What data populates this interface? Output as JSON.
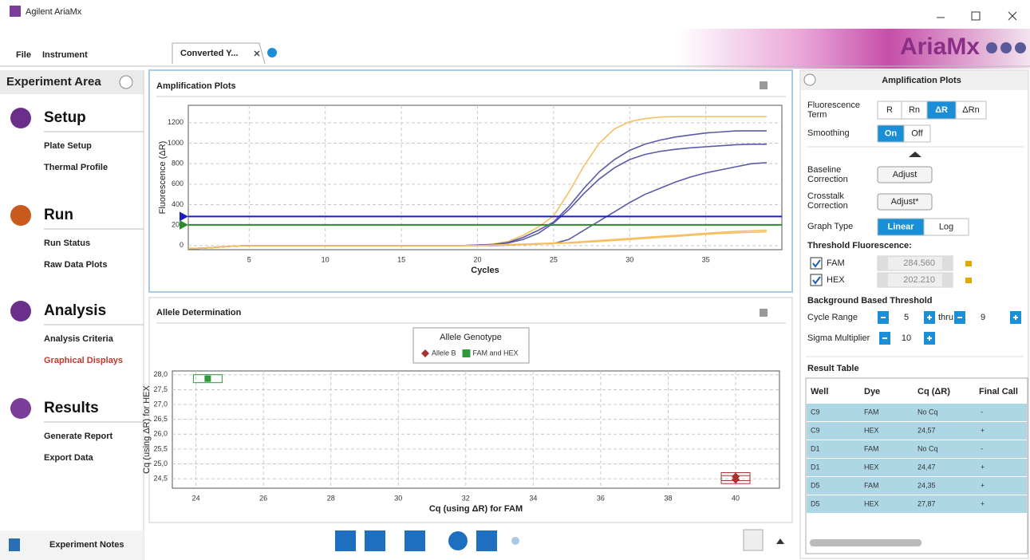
{
  "window": {
    "title": "Agilent AriaMx"
  },
  "menu": [
    "File",
    "Instrument"
  ],
  "tab": {
    "label": "Converted Y..."
  },
  "brand": "AriaMx",
  "sidebar": {
    "title": "Experiment Area",
    "sections": [
      {
        "title": "Setup",
        "items": [
          "Plate Setup",
          "Thermal Profile"
        ]
      },
      {
        "title": "Run",
        "items": [
          "Run Status",
          "Raw Data Plots"
        ]
      },
      {
        "title": "Analysis",
        "items": [
          "Analysis Criteria",
          "Graphical Displays"
        ]
      },
      {
        "title": "Results",
        "items": [
          "Generate Report",
          "Export Data"
        ]
      }
    ],
    "selected": [
      2,
      1
    ],
    "footer": "Experiment Notes"
  },
  "chart_data": [
    {
      "type": "line",
      "title": "Amplification Plots",
      "x_label": "Cycles",
      "y_label": "Fluorescence (ΔR)",
      "x": [
        1,
        2,
        3,
        4,
        5,
        6,
        7,
        8,
        9,
        10,
        11,
        12,
        13,
        14,
        15,
        16,
        17,
        18,
        19,
        20,
        21,
        22,
        23,
        24,
        25,
        26,
        27,
        28,
        29,
        30,
        31,
        32,
        33,
        34,
        35,
        36,
        37,
        38,
        39
      ],
      "xlim": [
        1,
        40
      ],
      "ylim": [
        -40,
        1370
      ],
      "xticks": [
        5,
        10,
        15,
        20,
        25,
        30,
        35
      ],
      "yticks": [
        0,
        200,
        400,
        600,
        800,
        1000,
        1200
      ],
      "grid": true,
      "series": [
        {
          "color": "#f5c060",
          "values": [
            -30,
            -25,
            -15,
            -5,
            0,
            0,
            0,
            0,
            0,
            0,
            0,
            0,
            0,
            0,
            0,
            0,
            0,
            0,
            0,
            5,
            15,
            40,
            100,
            180,
            290,
            520,
            780,
            1000,
            1140,
            1210,
            1240,
            1255,
            1260,
            1260,
            1260,
            1260,
            1260,
            1260,
            1260
          ]
        },
        {
          "color": "#5a5aa8",
          "values": [
            -30,
            -25,
            -15,
            -5,
            0,
            0,
            0,
            0,
            0,
            0,
            0,
            0,
            0,
            0,
            0,
            0,
            0,
            0,
            0,
            5,
            10,
            30,
            80,
            150,
            230,
            380,
            560,
            720,
            840,
            930,
            990,
            1030,
            1060,
            1080,
            1100,
            1110,
            1120,
            1120,
            1120
          ]
        },
        {
          "color": "#5a5aa8",
          "values": [
            -30,
            -25,
            -15,
            -5,
            0,
            0,
            0,
            0,
            0,
            0,
            0,
            0,
            0,
            0,
            0,
            0,
            0,
            0,
            0,
            5,
            10,
            25,
            60,
            120,
            220,
            350,
            510,
            650,
            760,
            840,
            890,
            920,
            940,
            955,
            965,
            975,
            985,
            990,
            990
          ]
        },
        {
          "color": "#5a5aa8",
          "values": [
            -30,
            -25,
            -15,
            -5,
            0,
            0,
            0,
            0,
            0,
            0,
            0,
            0,
            0,
            0,
            0,
            0,
            0,
            0,
            0,
            0,
            0,
            5,
            10,
            15,
            20,
            60,
            150,
            240,
            330,
            420,
            500,
            560,
            620,
            670,
            710,
            740,
            770,
            800,
            810
          ]
        },
        {
          "color": "#f5c060",
          "values": [
            -30,
            -25,
            -15,
            -5,
            0,
            0,
            0,
            0,
            0,
            0,
            0,
            0,
            0,
            0,
            0,
            0,
            0,
            0,
            0,
            0,
            5,
            10,
            15,
            20,
            25,
            30,
            40,
            50,
            60,
            70,
            80,
            90,
            100,
            110,
            120,
            130,
            140,
            145,
            150
          ]
        },
        {
          "color": "#f5c060",
          "values": [
            -30,
            -25,
            -15,
            -5,
            0,
            0,
            0,
            0,
            0,
            0,
            0,
            0,
            0,
            0,
            0,
            0,
            0,
            0,
            0,
            0,
            3,
            6,
            10,
            15,
            20,
            25,
            32,
            40,
            50,
            60,
            70,
            80,
            90,
            100,
            110,
            118,
            125,
            130,
            135
          ]
        }
      ],
      "thresholds": [
        {
          "dye": "FAM",
          "value": 284.56,
          "label": "284.560",
          "color": "#1c1cc8"
        },
        {
          "dye": "HEX",
          "value": 202.21,
          "label": "202.210",
          "color": "#2e8b2e"
        }
      ]
    },
    {
      "type": "scatter",
      "title": "Allele Determination",
      "x_label": "Cq (using ΔR) for FAM",
      "y_label": "Cq (using ΔR) for HEX",
      "legend_title": "Allele Genotype",
      "xlim": [
        23.3,
        41.3
      ],
      "ylim": [
        24.18,
        28.13
      ],
      "xticks": [
        24,
        26,
        28,
        30,
        32,
        34,
        36,
        38,
        40
      ],
      "yticks": [
        {
          "value": 24.5,
          "label": "24,5"
        },
        {
          "value": 25,
          "label": "25,0"
        },
        {
          "value": 25.5,
          "label": "25,5"
        },
        {
          "value": 26,
          "label": "26,0"
        },
        {
          "value": 26.5,
          "label": "26,5"
        },
        {
          "value": 27,
          "label": "27,0"
        },
        {
          "value": 27.5,
          "label": "27,5"
        },
        {
          "value": 28,
          "label": "28,0"
        }
      ],
      "grid": true,
      "series": [
        {
          "name": "Allele B",
          "color": "#a83232",
          "marker": "diamond",
          "x": [
            40,
            40
          ],
          "values": [
            24.57,
            24.47
          ]
        },
        {
          "name": "FAM and HEX",
          "color": "#2e9a3a",
          "marker": "square",
          "x": [
            24.35
          ],
          "values": [
            27.87
          ]
        }
      ]
    }
  ],
  "settings_panel": {
    "title": "Amplification Plots",
    "fluorescence_term": {
      "label": [
        "Fluorescence",
        "Term"
      ],
      "options": [
        "R",
        "Rn",
        "ΔR",
        "ΔRn"
      ],
      "selected": 2
    },
    "smoothing": {
      "label": "Smoothing",
      "options": [
        "On",
        "Off"
      ],
      "selected": 0
    },
    "baseline": {
      "label": [
        "Baseline",
        "Correction"
      ],
      "button": "Adjust"
    },
    "crosstalk": {
      "label": [
        "Crosstalk",
        "Correction"
      ],
      "button": "Adjust*"
    },
    "graph_type": {
      "label": "Graph Type",
      "options": [
        "Linear",
        "Log"
      ],
      "selected": 0
    },
    "threshold_title": "Threshold Fluorescence:",
    "background_title": "Background Based Threshold",
    "cycle_range": {
      "label": "Cycle Range",
      "from": 5,
      "thru_label": "thru",
      "to": 9
    },
    "sigma": {
      "label": "Sigma Multiplier",
      "value": 10
    }
  },
  "result_table": {
    "title": "Result Table",
    "columns": [
      "Well",
      "Dye",
      "Cq (ΔR)",
      "Final Call"
    ],
    "rows": [
      [
        "C9",
        "FAM",
        "No Cq",
        "-"
      ],
      [
        "C9",
        "HEX",
        "24,57",
        "+"
      ],
      [
        "D1",
        "FAM",
        "No Cq",
        "-"
      ],
      [
        "D1",
        "HEX",
        "24,47",
        "+"
      ],
      [
        "D5",
        "FAM",
        "24,35",
        "+"
      ],
      [
        "D5",
        "HEX",
        "27,87",
        "+"
      ]
    ]
  }
}
